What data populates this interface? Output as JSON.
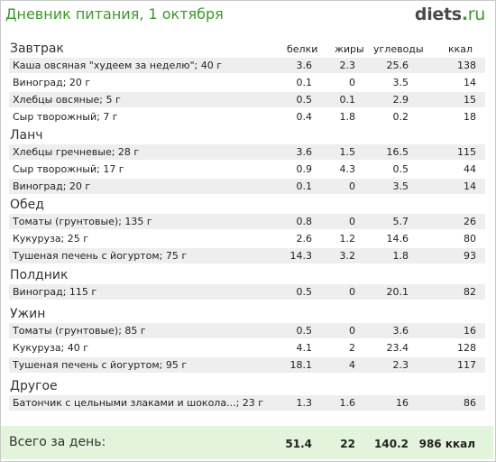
{
  "header": {
    "title": "Дневник питания, 1 октября",
    "logo_main": "diets",
    "logo_dot": ".",
    "logo_tld": "ru"
  },
  "columns": {
    "protein": "белки",
    "fat": "жиры",
    "carbs": "углеводы",
    "kcal": "ккал"
  },
  "meals": [
    {
      "title": "Завтрак",
      "items": [
        {
          "name": "Каша овсяная \"худеем за неделю\"; 40 г",
          "protein": "3.6",
          "fat": "2.3",
          "carbs": "25.6",
          "kcal": "138"
        },
        {
          "name": "Виноград; 20 г",
          "protein": "0.1",
          "fat": "0",
          "carbs": "3.5",
          "kcal": "14"
        },
        {
          "name": "Хлебцы овсяные; 5 г",
          "protein": "0.5",
          "fat": "0.1",
          "carbs": "2.9",
          "kcal": "15"
        },
        {
          "name": "Сыр творожный; 7 г",
          "protein": "0.4",
          "fat": "1.8",
          "carbs": "0.2",
          "kcal": "18"
        }
      ]
    },
    {
      "title": "Ланч",
      "items": [
        {
          "name": "Хлебцы гречневые; 28 г",
          "protein": "3.6",
          "fat": "1.5",
          "carbs": "16.5",
          "kcal": "115"
        },
        {
          "name": "Сыр творожный; 17 г",
          "protein": "0.9",
          "fat": "4.3",
          "carbs": "0.5",
          "kcal": "44"
        },
        {
          "name": "Виноград; 20 г",
          "protein": "0.1",
          "fat": "0",
          "carbs": "3.5",
          "kcal": "14"
        }
      ]
    },
    {
      "title": "Обед",
      "items": [
        {
          "name": "Томаты (грунтовые); 135 г",
          "protein": "0.8",
          "fat": "0",
          "carbs": "5.7",
          "kcal": "26"
        },
        {
          "name": "Кукуруза; 25 г",
          "protein": "2.6",
          "fat": "1.2",
          "carbs": "14.6",
          "kcal": "80"
        },
        {
          "name": "Тушеная печень с йогуртом; 75 г",
          "protein": "14.3",
          "fat": "3.2",
          "carbs": "1.8",
          "kcal": "93"
        }
      ]
    },
    {
      "title": "Полдник",
      "items": [
        {
          "name": "Виноград; 115 г",
          "protein": "0.5",
          "fat": "0",
          "carbs": "20.1",
          "kcal": "82"
        }
      ]
    },
    {
      "title": "Ужин",
      "items": [
        {
          "name": "Томаты (грунтовые); 85 г",
          "protein": "0.5",
          "fat": "0",
          "carbs": "3.6",
          "kcal": "16"
        },
        {
          "name": "Кукуруза; 40 г",
          "protein": "4.1",
          "fat": "2",
          "carbs": "23.4",
          "kcal": "128"
        },
        {
          "name": "Тушеная печень с йогуртом; 95 г",
          "protein": "18.1",
          "fat": "4",
          "carbs": "2.3",
          "kcal": "117"
        }
      ]
    },
    {
      "title": "Другое",
      "items": [
        {
          "name": "Батончик с цельными злаками и шокола...; 23 г",
          "protein": "1.3",
          "fat": "1.6",
          "carbs": "16",
          "kcal": "86"
        }
      ]
    }
  ],
  "totals": {
    "label": "Всего за день:",
    "protein": "51.4",
    "fat": "22",
    "carbs": "140.2",
    "kcal": "986 ккал"
  },
  "colors": {
    "accent_green": "#3b9a2a",
    "footer_bg": "#e2f4dc",
    "row_stripe": "#eeeeee"
  }
}
